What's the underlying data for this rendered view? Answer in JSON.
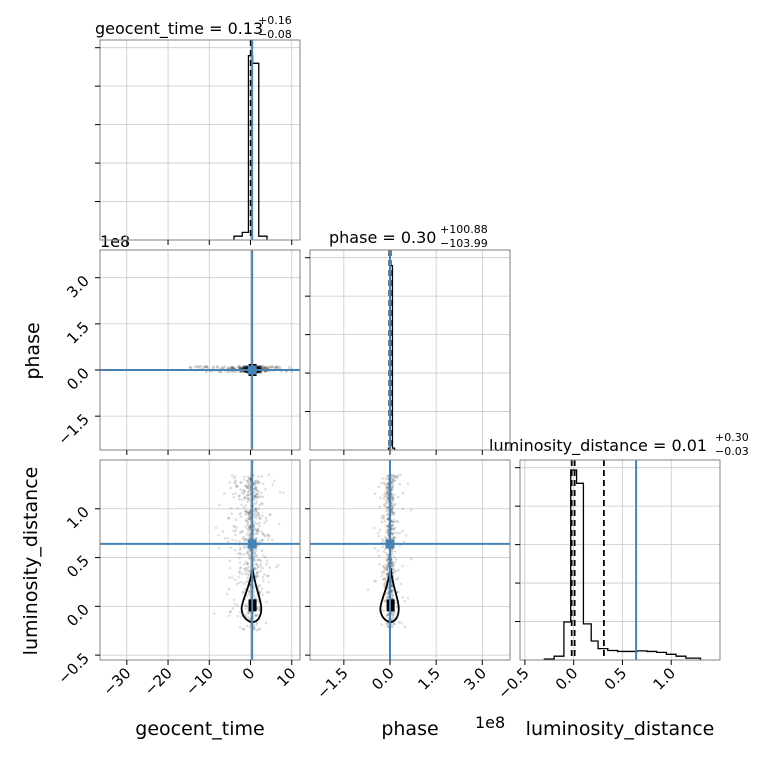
{
  "chart_data": {
    "type": "corner",
    "truth_color": "#4682b4",
    "hist_color": "#000000",
    "grid": true,
    "parameters": [
      "geocent_time",
      "phase",
      "luminosity_distance"
    ],
    "axis_labels": {
      "geocent_time": "geocent_time",
      "phase": "phase",
      "luminosity_distance": "luminosity_distance"
    },
    "offset_texts": {
      "top_left": "1e8",
      "bottom_middle": "1e8"
    },
    "titles": {
      "geocent_time": {
        "prefix": "geocent_time = ",
        "median": "0.13",
        "plus": "+0.16",
        "minus": "−0.08"
      },
      "phase": {
        "prefix": "phase = ",
        "median": "0.30",
        "plus": "+100.88",
        "minus": "−103.99"
      },
      "luminosity_distance": {
        "prefix": "luminosity_distance = ",
        "median": "0.01",
        "plus": "+0.30",
        "minus": "−0.03"
      }
    },
    "ticks": {
      "geocent_time": {
        "values": [
          -30,
          -20,
          -10,
          0,
          10
        ],
        "labels": [
          "−30",
          "−20",
          "−10",
          "0",
          "10"
        ]
      },
      "phase": {
        "values": [
          -1.5,
          0.0,
          1.5,
          3.0
        ],
        "labels": [
          "−1.5",
          "0.0",
          "1.5",
          "3.0"
        ]
      },
      "luminosity_distance": {
        "values": [
          -0.5,
          0.0,
          0.5,
          1.0
        ],
        "labels": [
          "−0.5",
          "0.0",
          "0.5",
          "1.0"
        ]
      }
    },
    "ranges": {
      "geocent_time": [
        -36.5,
        12.0
      ],
      "phase": [
        -2.6,
        3.9
      ],
      "luminosity_distance": [
        -0.55,
        1.5
      ]
    },
    "truths": {
      "geocent_time": 0.4,
      "phase": 0.0,
      "luminosity_distance": 0.64
    },
    "quantile_lines": {
      "geocent_time": [
        0.05,
        0.13,
        0.29
      ],
      "phase": [
        -0.02,
        0.003,
        0.02
      ],
      "luminosity_distance": [
        -0.02,
        0.01,
        0.31
      ]
    },
    "hist_1d": {
      "geocent_time": {
        "edges": [
          -4,
          -2,
          -0.5,
          0.5,
          2,
          4
        ],
        "heights": [
          0.02,
          0.04,
          0.97,
          0.93,
          0.02
        ]
      },
      "phase": {
        "edges": [
          -0.05,
          0.0,
          0.08,
          0.15
        ],
        "heights": [
          0.01,
          0.97,
          0.01
        ]
      },
      "luminosity_distance": {
        "edges": [
          -0.3,
          -0.2,
          -0.1,
          -0.03,
          0.03,
          0.1,
          0.18,
          0.25,
          0.35,
          0.45,
          0.55,
          0.65,
          0.75,
          0.85,
          0.95,
          1.05,
          1.15,
          1.3
        ],
        "heights": [
          0.005,
          0.02,
          0.2,
          1.0,
          0.93,
          0.19,
          0.1,
          0.06,
          0.05,
          0.045,
          0.045,
          0.048,
          0.045,
          0.04,
          0.03,
          0.02,
          0.01
        ]
      }
    },
    "contours": {
      "geocent_time__luminosity_distance": {
        "cx": 0.5,
        "cy": 0.01,
        "rx": 2.8,
        "ry": 0.38
      },
      "phase__luminosity_distance": {
        "cx": 0.02,
        "cy": 0.01,
        "rx": 0.35,
        "ry": 0.38
      },
      "geocent_time__phase": {
        "cx": 0.5,
        "cy": 0.0,
        "rx": 2.0,
        "ry": 0.04
      }
    },
    "scatter_spread": {
      "geocent_time__luminosity_distance": {
        "x_center": 0.4,
        "x_scale": 2.2,
        "x_tail": -12,
        "y_min": -0.25,
        "y_max": 1.35
      },
      "phase__luminosity_distance": {
        "x_center": 0.0,
        "x_scale": 0.15,
        "y_min": -0.25,
        "y_max": 1.35
      },
      "geocent_time__phase": {
        "x_center": 0.4,
        "x_scale": 2.5,
        "x_tail": -30,
        "y_min": -0.08,
        "y_max": 0.12
      }
    }
  }
}
